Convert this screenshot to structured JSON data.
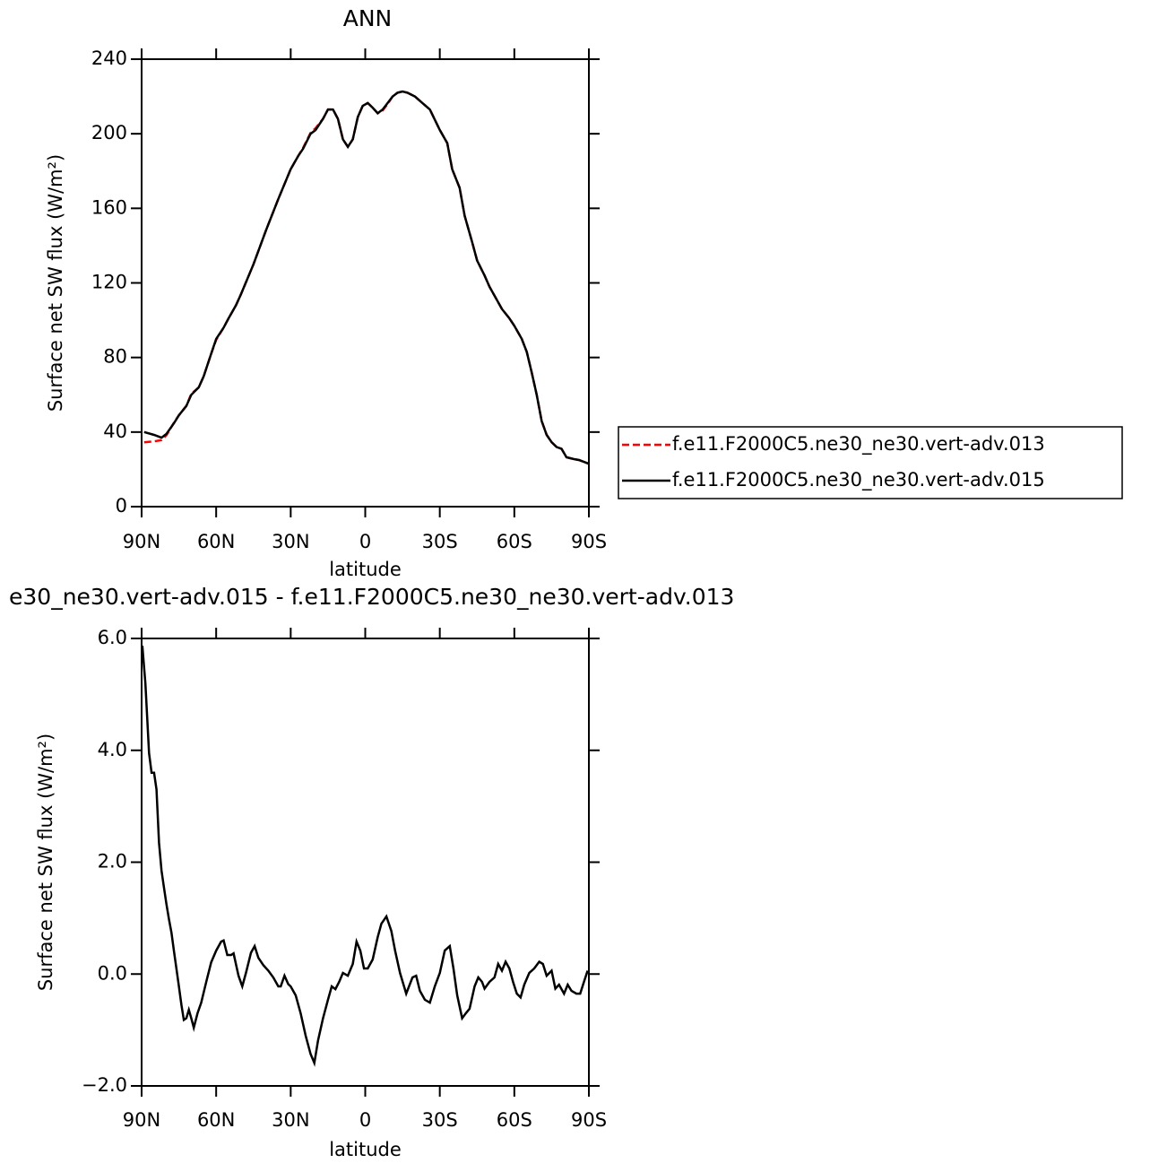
{
  "chart_data": [
    {
      "type": "line",
      "title": "ANN",
      "xlabel": "latitude",
      "ylabel": "Surface net SW flux (W/m²)",
      "x": [
        89,
        85,
        82,
        80,
        77,
        75,
        72,
        70,
        67,
        65,
        62,
        60,
        57,
        55,
        52,
        50,
        45,
        40,
        35,
        30,
        27,
        25,
        22,
        20,
        17,
        15,
        13,
        11,
        9,
        7,
        5,
        3,
        1,
        -1,
        -3,
        -5,
        -7,
        -9,
        -11,
        -13,
        -15,
        -17,
        -20,
        -23,
        -26,
        -30,
        -33,
        -35,
        -38,
        -40,
        -43,
        -45,
        -48,
        -50,
        -55,
        -58,
        -60,
        -63,
        -65,
        -67,
        -69,
        -71,
        -73,
        -75,
        -77,
        -79,
        -81,
        -84,
        -86,
        -88,
        -90
      ],
      "series": [
        {
          "name": "f.e11.F2000C5.ne30_ne30.vert-adv.013",
          "color": "#ff0000",
          "line_style": "dashed",
          "values": [
            34.5,
            35,
            35.7,
            38.3,
            45,
            49,
            54,
            60.5,
            64,
            70,
            82,
            89.5,
            96,
            101,
            108,
            114,
            130,
            148,
            165,
            181,
            188,
            192.5,
            200.5,
            203,
            208,
            213,
            213,
            208,
            197,
            193,
            197,
            209,
            215,
            216.5,
            214,
            211,
            212.5,
            216,
            220,
            222,
            222.7,
            222,
            220,
            216.5,
            213,
            202,
            195,
            181,
            171,
            156,
            142,
            132,
            124,
            118,
            106,
            101,
            97,
            90,
            83,
            72,
            60,
            46,
            38.5,
            34.6,
            32,
            31,
            26.5,
            25.5,
            25,
            24,
            23
          ]
        },
        {
          "name": "f.e11.F2000C5.ne30_ne30.vert-adv.015",
          "color": "#000000",
          "line_style": "solid",
          "values": [
            40,
            38.5,
            37,
            39,
            44.7,
            49,
            54,
            60,
            64,
            70,
            82,
            90,
            96,
            101,
            108,
            114,
            130,
            148,
            165,
            181,
            188,
            192,
            200,
            202,
            208,
            213,
            213,
            208,
            197,
            193,
            197,
            209,
            215,
            216.5,
            214,
            211,
            213,
            216.5,
            220,
            222,
            222.7,
            222,
            220,
            216.5,
            213,
            202,
            195,
            181,
            171,
            156,
            142,
            132,
            124,
            118,
            106,
            101,
            97,
            90,
            83,
            72,
            60,
            46,
            38.5,
            34.6,
            32,
            31,
            26.5,
            25.5,
            25,
            24,
            23
          ]
        }
      ],
      "xlim": [
        90,
        -90
      ],
      "xticks": [
        {
          "value": 90,
          "label": "90N"
        },
        {
          "value": 60,
          "label": "60N"
        },
        {
          "value": 30,
          "label": "30N"
        },
        0,
        {
          "value": -30,
          "label": "30S"
        },
        {
          "value": -60,
          "label": "60S"
        },
        {
          "value": -90,
          "label": "90S"
        }
      ],
      "ylim": [
        0,
        240
      ],
      "yticks": [
        0,
        40,
        80,
        120,
        160,
        200,
        240
      ],
      "legend": "right"
    },
    {
      "type": "line",
      "title": "e30_ne30.vert-adv.015 - f.e11.F2000C5.ne30_ne30.vert-adv.013",
      "xlabel": "latitude",
      "ylabel": "Surface net SW flux (W/m²)",
      "x": [
        89.7,
        88.5,
        87,
        86,
        85,
        84,
        83,
        82,
        81,
        80,
        79,
        78,
        77,
        76,
        75,
        74,
        73,
        72,
        71,
        70,
        69,
        67.5,
        66,
        64,
        62,
        60,
        58,
        57,
        55.5,
        54,
        53,
        51,
        49.5,
        48,
        46,
        44.5,
        43,
        41,
        39,
        37,
        35,
        34,
        32.5,
        31,
        30,
        28,
        26,
        24,
        22,
        20.5,
        19,
        17,
        15,
        13.5,
        12,
        10.5,
        9,
        7,
        5,
        3.5,
        2,
        0.5,
        -1,
        -3,
        -5,
        -6.5,
        -8.5,
        -10.5,
        -12,
        -14,
        -16.5,
        -19,
        -20.5,
        -22,
        -24,
        -26,
        -28,
        -30,
        -32,
        -34,
        -35.5,
        -37,
        -39,
        -40.5,
        -42,
        -44,
        -45.5,
        -47,
        -48,
        -50,
        -52,
        -53.5,
        -55,
        -56.5,
        -58,
        -59.5,
        -61,
        -62.5,
        -64,
        -66,
        -68,
        -70,
        -71.5,
        -73,
        -75,
        -76.5,
        -78,
        -80,
        -81.5,
        -83,
        -85,
        -86.5,
        -88,
        -89.5
      ],
      "values": [
        5.87,
        5.2,
        3.95,
        3.6,
        3.6,
        3.3,
        2.35,
        1.85,
        1.55,
        1.25,
        0.98,
        0.74,
        0.42,
        0.1,
        -0.22,
        -0.55,
        -0.82,
        -0.79,
        -0.64,
        -0.79,
        -0.96,
        -0.7,
        -0.51,
        -0.14,
        0.21,
        0.42,
        0.58,
        0.6,
        0.34,
        0.34,
        0.37,
        -0.03,
        -0.22,
        0.02,
        0.38,
        0.5,
        0.29,
        0.16,
        0.06,
        -0.06,
        -0.22,
        -0.22,
        -0.03,
        -0.18,
        -0.22,
        -0.38,
        -0.7,
        -1.1,
        -1.43,
        -1.59,
        -1.19,
        -0.79,
        -0.46,
        -0.22,
        -0.27,
        -0.14,
        0.02,
        -0.03,
        0.18,
        0.58,
        0.42,
        0.1,
        0.1,
        0.26,
        0.66,
        0.9,
        1.03,
        0.77,
        0.42,
        0.02,
        -0.35,
        -0.06,
        -0.03,
        -0.3,
        -0.46,
        -0.51,
        -0.22,
        0.02,
        0.42,
        0.5,
        0.1,
        -0.38,
        -0.79,
        -0.7,
        -0.62,
        -0.22,
        -0.06,
        -0.14,
        -0.26,
        -0.14,
        -0.06,
        0.18,
        0.06,
        0.22,
        0.1,
        -0.14,
        -0.35,
        -0.42,
        -0.19,
        0.02,
        0.1,
        0.22,
        0.18,
        -0.03,
        0.06,
        -0.26,
        -0.19,
        -0.35,
        -0.19,
        -0.3,
        -0.35,
        -0.35,
        -0.14,
        0.06
      ],
      "color": "#000000",
      "line_style": "solid",
      "xlim": [
        90,
        -90
      ],
      "xticks": [
        {
          "value": 90,
          "label": "90N"
        },
        {
          "value": 60,
          "label": "60N"
        },
        {
          "value": 30,
          "label": "30N"
        },
        0,
        {
          "value": -30,
          "label": "30S"
        },
        {
          "value": -60,
          "label": "60S"
        },
        {
          "value": -90,
          "label": "90S"
        }
      ],
      "ylim": [
        -2,
        6
      ],
      "yticks": [
        {
          "value": -2,
          "label": "−2.0"
        },
        {
          "value": 0,
          "label": "0.0"
        },
        {
          "value": 2,
          "label": "2.0"
        },
        {
          "value": 4,
          "label": "4.0"
        },
        {
          "value": 6,
          "label": "6.0"
        }
      ]
    }
  ]
}
